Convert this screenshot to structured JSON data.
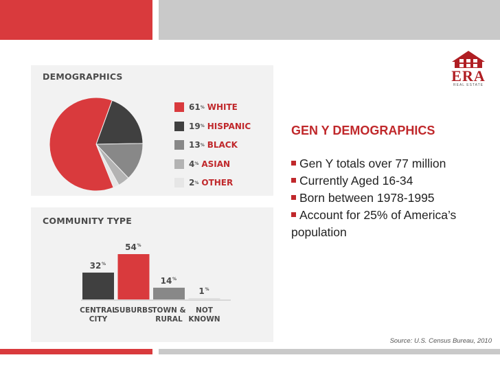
{
  "colors": {
    "red": "#d93a3d",
    "dark": "#404040",
    "grey": "#888888",
    "light_grey": "#b3b3b3",
    "lightest": "#e6e6e6",
    "heading_red": "#c0282b"
  },
  "demographics": {
    "heading": "DEMOGRAPHICS"
  },
  "community": {
    "heading": "COMMUNITY TYPE"
  },
  "chart_data": [
    {
      "type": "pie",
      "title": "DEMOGRAPHICS",
      "slices": [
        {
          "label": "WHITE",
          "value": 61,
          "pct_text": "61",
          "color": "#d93a3d"
        },
        {
          "label": "HISPANIC",
          "value": 19,
          "pct_text": "19",
          "color": "#404040"
        },
        {
          "label": "BLACK",
          "value": 13,
          "pct_text": "13",
          "color": "#888888"
        },
        {
          "label": "ASIAN",
          "value": 4,
          "pct_text": "4",
          "color": "#b3b3b3"
        },
        {
          "label": "OTHER",
          "value": 2,
          "pct_text": "2",
          "color": "#e6e6e6"
        }
      ],
      "legend_placement": "right"
    },
    {
      "type": "bar",
      "title": "COMMUNITY TYPE",
      "categories": [
        [
          "CENTRAL",
          "CITY"
        ],
        [
          "SUBURBS",
          ""
        ],
        [
          "TOWN &",
          "RURAL"
        ],
        [
          "NOT",
          "KNOWN"
        ]
      ],
      "values": [
        32,
        54,
        14,
        1
      ],
      "value_labels": [
        "32",
        "54",
        "14",
        "1"
      ],
      "colors": [
        "#404040",
        "#d93a3d",
        "#888888",
        "#e0e0e0"
      ],
      "ylim": [
        0,
        54
      ]
    }
  ],
  "info": {
    "logo_text": "ERA",
    "logo_subtext": "REAL ESTATE",
    "title": "GEN Y DEMOGRAPHICS",
    "bullets": [
      "Gen Y totals over 77 million",
      "Currently Aged 16-34",
      "Born between 1978-1995",
      "Account for 25% of America’s population"
    ]
  },
  "source": "Source: U.S. Census Bureau, 2010"
}
